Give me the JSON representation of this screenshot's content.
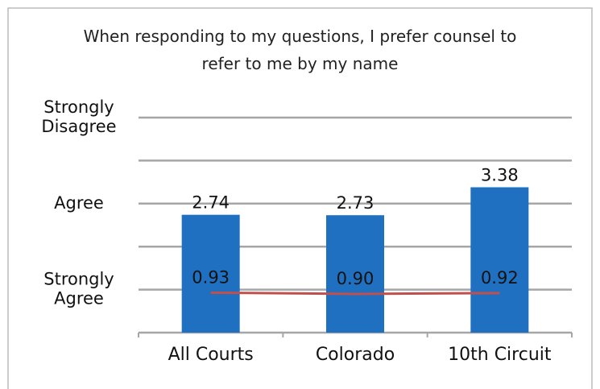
{
  "chart_data": {
    "type": "bar",
    "title": "When responding to my questions, I prefer counsel to refer to me by my name",
    "categories": [
      "All Courts",
      "Colorado",
      "10th Circuit"
    ],
    "series": [
      {
        "name": null,
        "type": "bar",
        "color": "#1f70c1",
        "values": [
          2.74,
          2.73,
          3.38
        ]
      },
      {
        "name": null,
        "type": "line",
        "color": "#c0504d",
        "values": [
          0.93,
          0.9,
          0.92
        ],
        "value_labels": [
          "0.93",
          "0.90",
          "0.92"
        ]
      }
    ],
    "ylim": [
      0,
      5
    ],
    "yticks": [
      {
        "value": 0,
        "label": null
      },
      {
        "value": 1,
        "label": "Strongly Agree"
      },
      {
        "value": 2,
        "label": null
      },
      {
        "value": 3,
        "label": "Agree"
      },
      {
        "value": 4,
        "label": null
      },
      {
        "value": 5,
        "label": "Strongly Disagree"
      }
    ],
    "grid": true
  }
}
